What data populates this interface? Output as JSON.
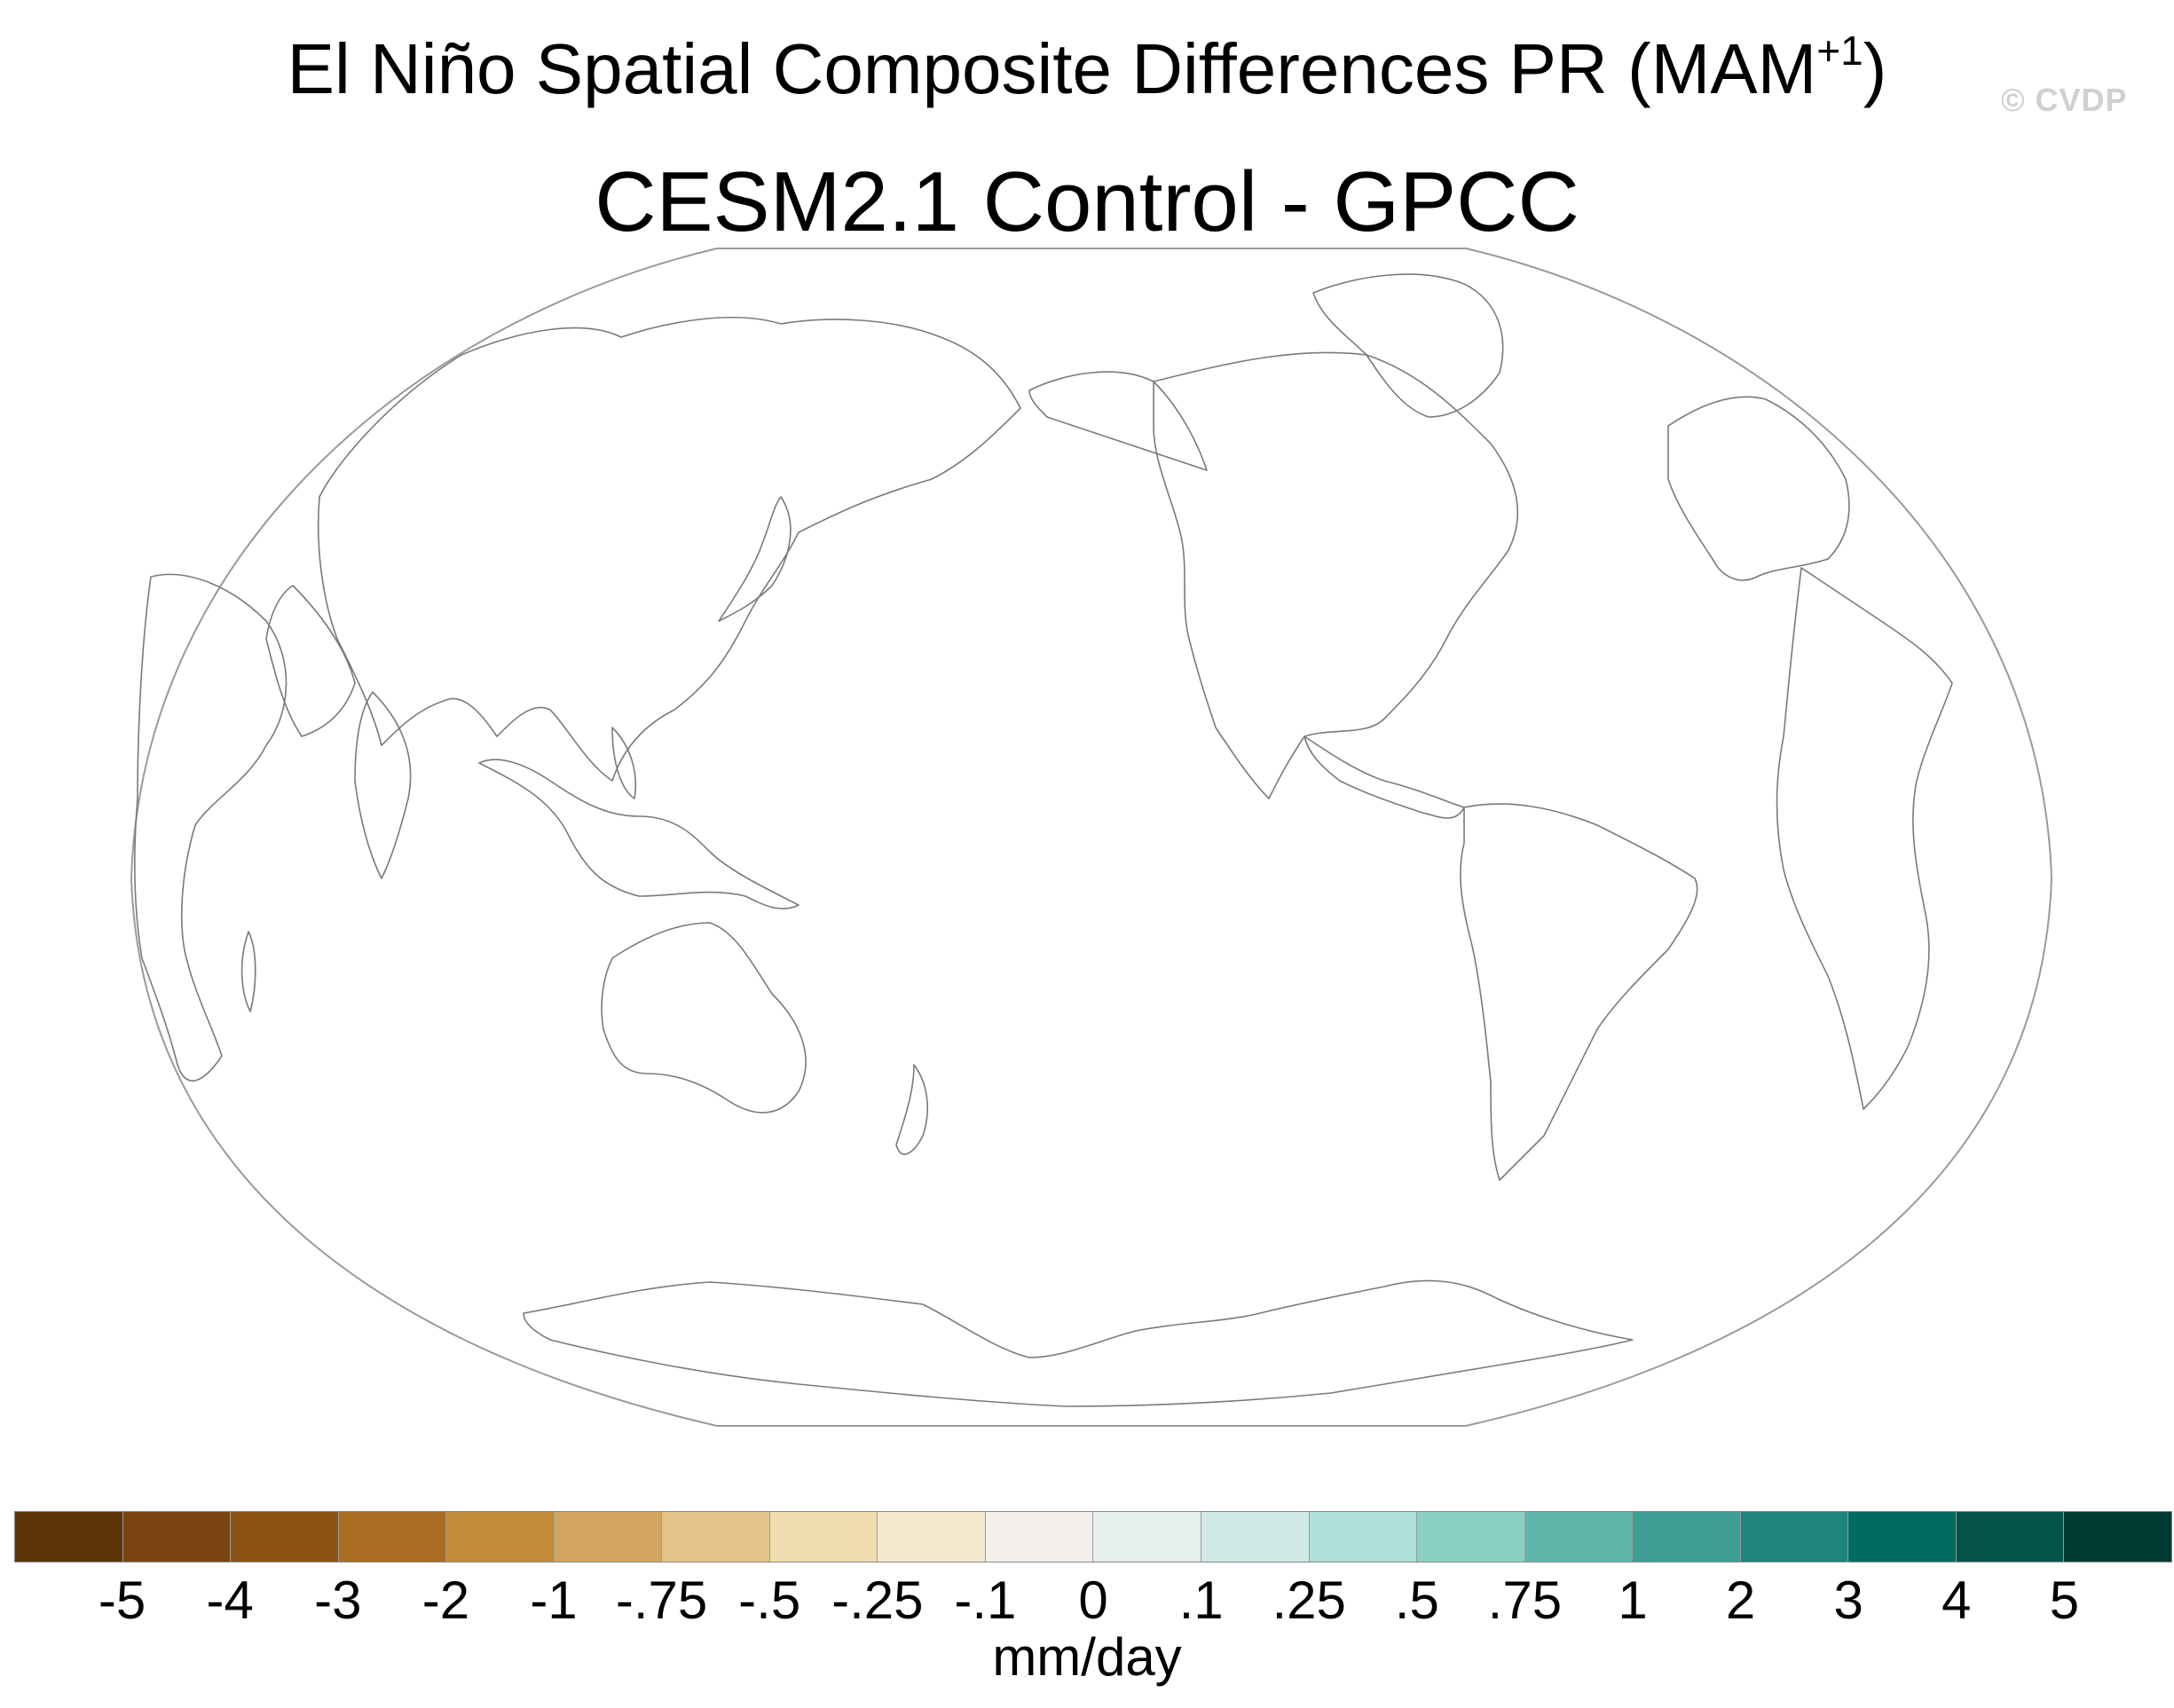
{
  "title": {
    "main": "El Niño Spatial Composite Differences PR (MAM",
    "superscript": "+1",
    "closing": ")",
    "subtitle": "CESM2.1 Control - GPCC",
    "watermark": "© CVDP"
  },
  "map": {
    "projection": "Winkel tripel / Robinson-like global",
    "central_longitude": 180,
    "field_shading": "none visible (all near zero / white)",
    "coastline_color": "#7a7a7a",
    "border_color": "#9a9a9a"
  },
  "colorbar": {
    "units": "mm/day",
    "labels": [
      "-5",
      "-4",
      "-3",
      "-2",
      "-1",
      "-.75",
      "-.5",
      "-.25",
      "-.1",
      "0",
      ".1",
      ".25",
      ".5",
      ".75",
      "1",
      "2",
      "3",
      "4",
      "5"
    ],
    "colors": [
      "#5c3508",
      "#7a4510",
      "#8e5313",
      "#a96c22",
      "#c28b3b",
      "#d3a660",
      "#e3c488",
      "#efdcb0",
      "#f4e9cf",
      "#f3efea",
      "#e6efec",
      "#cfe9e4",
      "#afe0d8",
      "#8ad0c3",
      "#5fb7a9",
      "#3d9f93",
      "#1f8479",
      "#006b61",
      "#04544a",
      "#013a32"
    ]
  }
}
